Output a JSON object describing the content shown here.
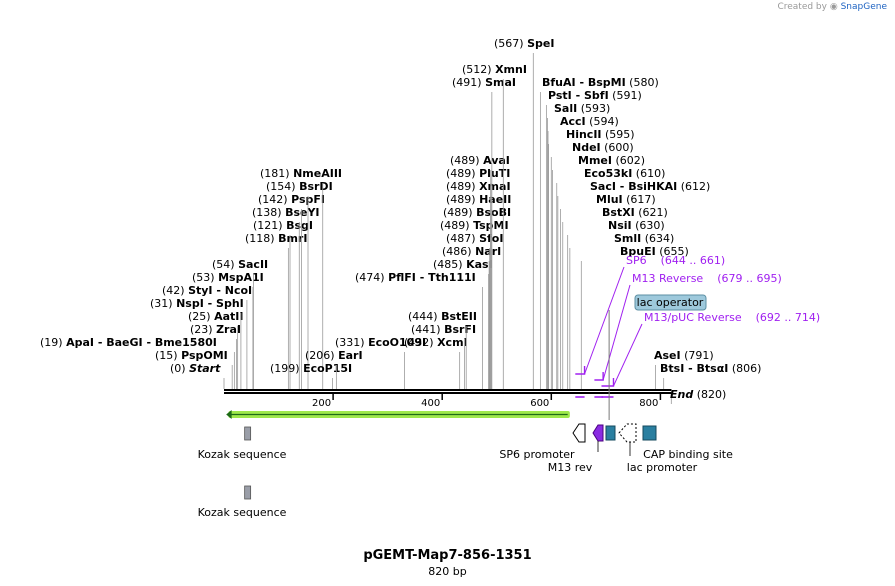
{
  "watermark": {
    "prefix": "Created by",
    "brand": "SnapGene"
  },
  "title": "pGEMT-Map7-856-1351",
  "subtitle": "820 bp",
  "colors": {
    "backbone": "#000000",
    "orf_fill": "#9ee84b",
    "orf_arrow": "#1d6a17",
    "primer": "#a020f0",
    "promoter_fill": "#ffffff",
    "cap": "#2a7fa0",
    "m13rev": "#8a2be2",
    "kozak": "#9a9ea8",
    "lac_operator": "#9ec9dc"
  },
  "axis": {
    "ticks": [
      200,
      400,
      600,
      800
    ],
    "length": 820
  },
  "sites": [
    {
      "pos": 0,
      "label": "Start",
      "italic": true
    },
    {
      "pos": 15,
      "label": "PspOMI"
    },
    {
      "pos": 19,
      "label": "ApaI",
      "label2": "BaeGI",
      "label3": "Bme1580I"
    },
    {
      "pos": 23,
      "label": "ZraI"
    },
    {
      "pos": 25,
      "label": "AatII"
    },
    {
      "pos": 31,
      "label": "NspI",
      "label2": "SphI"
    },
    {
      "pos": 42,
      "label": "StyI",
      "label2": "NcoI"
    },
    {
      "pos": 53,
      "label": "MspA1I"
    },
    {
      "pos": 54,
      "label": "SacII"
    },
    {
      "pos": 118,
      "label": "BmrI"
    },
    {
      "pos": 121,
      "label": "BsgI"
    },
    {
      "pos": 138,
      "label": "BseYI"
    },
    {
      "pos": 142,
      "label": "PspFI"
    },
    {
      "pos": 154,
      "label": "BsrDI"
    },
    {
      "pos": 181,
      "label": "NmeAIII"
    },
    {
      "pos": 199,
      "label": "EcoP15I"
    },
    {
      "pos": 206,
      "label": "EarI"
    },
    {
      "pos": 331,
      "label": "EcoO109I"
    },
    {
      "pos": 432,
      "label": "XcmI"
    },
    {
      "pos": 441,
      "label": "BsrFI"
    },
    {
      "pos": 444,
      "label": "BstEII"
    },
    {
      "pos": 474,
      "label": "PflFI",
      "label2": "Tth111I"
    },
    {
      "pos": 485,
      "label": "KasI"
    },
    {
      "pos": 486,
      "label": "NarI"
    },
    {
      "pos": 487,
      "label": "SfoI"
    },
    {
      "pos": 489,
      "label": "TspMI"
    },
    {
      "pos": 489,
      "label": "BsoBI"
    },
    {
      "pos": 489,
      "label": "HaeII"
    },
    {
      "pos": 489,
      "label": "XmaI"
    },
    {
      "pos": 489,
      "label": "PluTI"
    },
    {
      "pos": 489,
      "label": "AvaI"
    },
    {
      "pos": 491,
      "label": "SmaI"
    },
    {
      "pos": 512,
      "label": "XmnI"
    },
    {
      "pos": 567,
      "label": "SpeI"
    },
    {
      "pos": 580,
      "label": "BfuAI",
      "label2": "BspMI"
    },
    {
      "pos": 591,
      "label": "PstI",
      "label2": "SbfI"
    },
    {
      "pos": 593,
      "label": "SalI"
    },
    {
      "pos": 594,
      "label": "AccI"
    },
    {
      "pos": 595,
      "label": "HincII"
    },
    {
      "pos": 600,
      "label": "NdeI"
    },
    {
      "pos": 602,
      "label": "MmeI"
    },
    {
      "pos": 610,
      "label": "Eco53kI"
    },
    {
      "pos": 612,
      "label": "SacI",
      "label2": "BsiHKAI"
    },
    {
      "pos": 617,
      "label": "MluI"
    },
    {
      "pos": 621,
      "label": "BstXI"
    },
    {
      "pos": 630,
      "label": "NsiI"
    },
    {
      "pos": 634,
      "label": "SmlI"
    },
    {
      "pos": 655,
      "label": "BpuEI"
    },
    {
      "pos": 791,
      "label": "AseI"
    },
    {
      "pos": 806,
      "label": "BtsI",
      "label2": "BtsαI"
    },
    {
      "pos": 820,
      "label": "End",
      "italic": true
    }
  ],
  "primers": [
    {
      "label": "SP6",
      "range": "(644 .. 661)",
      "start": 644,
      "end": 661
    },
    {
      "label": "M13 Reverse",
      "range": "(679 .. 695)",
      "start": 679,
      "end": 695
    },
    {
      "label": "M13/pUC Reverse",
      "range": "(692 .. 714)",
      "start": 692,
      "end": 714
    }
  ],
  "lac_operator": {
    "label": "lac operator",
    "start": 706,
    "end": 712
  },
  "features": [
    {
      "label": "Kozak sequence",
      "kind": "kozak",
      "start": 36,
      "end": 44
    },
    {
      "label": "Kozak sequence",
      "kind": "kozak",
      "start": 36,
      "end": 44
    },
    {
      "label": "SP6 promoter",
      "kind": "promoter",
      "start": 643,
      "end": 661
    },
    {
      "label": "M13 rev",
      "kind": "m13rev",
      "start": 680,
      "end": 697
    },
    {
      "label": "lac promoter",
      "kind": "lacpromoter",
      "start": 718,
      "end": 748
    },
    {
      "label": "CAP binding site",
      "kind": "cap",
      "start": 763,
      "end": 784
    },
    {
      "label": "lac",
      "kind": "lacop",
      "start": 701,
      "end": 717
    }
  ]
}
